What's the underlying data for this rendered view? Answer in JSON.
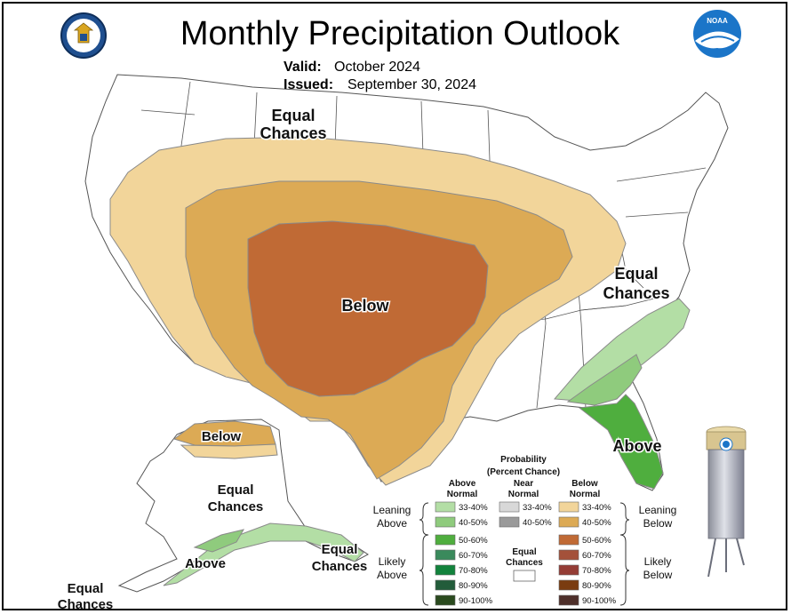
{
  "title": "Monthly Precipitation Outlook",
  "valid_label": "Valid:",
  "valid_value": "October 2024",
  "issued_label": "Issued:",
  "issued_value": "September 30, 2024",
  "logos": {
    "left": "commerce-seal-icon",
    "right": "noaa-logo-icon"
  },
  "map_labels": {
    "conus_north": [
      "Equal",
      "Chances"
    ],
    "conus_east": [
      "Equal",
      "Chances"
    ],
    "conus_center": "Below",
    "florida": "Above",
    "alaska_north": "Below",
    "alaska_center": [
      "Equal",
      "Chances"
    ],
    "alaska_south": "Above",
    "alaska_southeast": [
      "Equal",
      "Chances"
    ],
    "alaska_west": [
      "Equal",
      "Chances"
    ]
  },
  "legend": {
    "title": "Probability",
    "subtitle": "(Percent Chance)",
    "col_above": [
      "Above",
      "Normal"
    ],
    "col_near": [
      "Near",
      "Normal"
    ],
    "col_below": [
      "Below",
      "Normal"
    ],
    "leaning_left": [
      "Leaning",
      "Above"
    ],
    "leaning_right": [
      "Leaning",
      "Below"
    ],
    "likely_left": [
      "Likely",
      "Above"
    ],
    "likely_right": [
      "Likely",
      "Below"
    ],
    "equal": [
      "Equal",
      "Chances"
    ],
    "above": [
      {
        "label": "33-40%",
        "color": "#b3dea5"
      },
      {
        "label": "40-50%",
        "color": "#8fcb7d"
      },
      {
        "label": "50-60%",
        "color": "#4fae3e"
      },
      {
        "label": "60-70%",
        "color": "#3a8a5c"
      },
      {
        "label": "70-80%",
        "color": "#12833c"
      },
      {
        "label": "80-90%",
        "color": "#225c3a"
      },
      {
        "label": "90-100%",
        "color": "#2a4a1e"
      }
    ],
    "near": [
      {
        "label": "33-40%",
        "color": "#d8d8d8"
      },
      {
        "label": "40-50%",
        "color": "#9a9a9a"
      }
    ],
    "below": [
      {
        "label": "33-40%",
        "color": "#f2d59a"
      },
      {
        "label": "40-50%",
        "color": "#dcaa55"
      },
      {
        "label": "50-60%",
        "color": "#c06a35"
      },
      {
        "label": "60-70%",
        "color": "#a4513a"
      },
      {
        "label": "70-80%",
        "color": "#943c35"
      },
      {
        "label": "80-90%",
        "color": "#7a3c10"
      },
      {
        "label": "90-100%",
        "color": "#4e2f2a"
      }
    ]
  },
  "gauge": "rain-gauge-icon"
}
